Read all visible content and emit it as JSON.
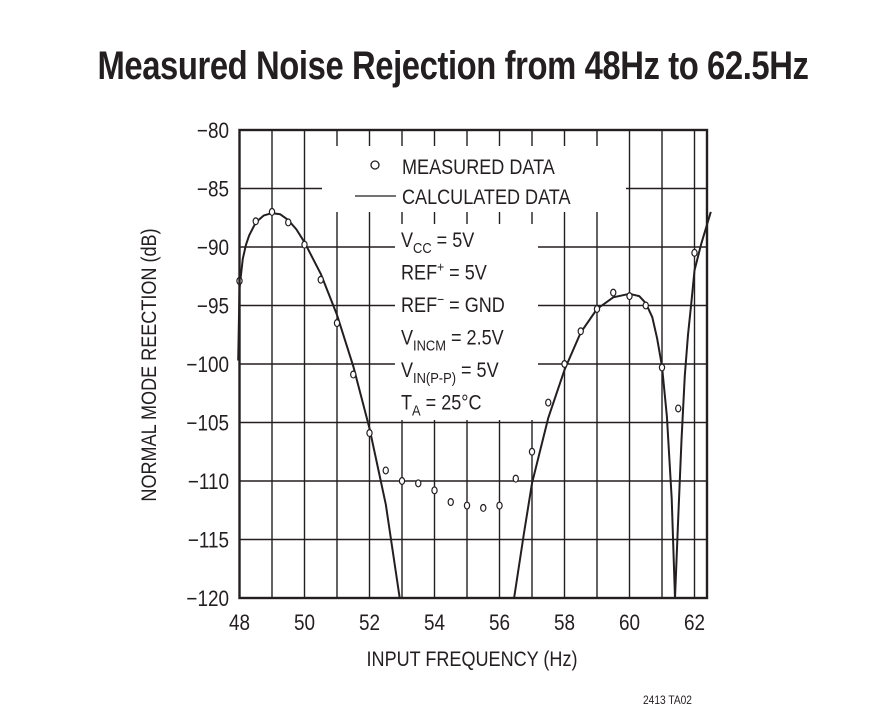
{
  "title": "Measured Noise Rejection from 48Hz to 62.5Hz",
  "footer": "2413 TA02",
  "legend": {
    "measured": "MEASURED DATA",
    "calculated": "CALCULATED DATA"
  },
  "conditions": [
    {
      "main": "V",
      "sub": "CC",
      "sup": "",
      "rest": " = 5V"
    },
    {
      "main": "REF",
      "sub": "",
      "sup": "+",
      "rest": " = 5V"
    },
    {
      "main": "REF",
      "sub": "",
      "sup": "−",
      "rest": " = GND"
    },
    {
      "main": "V",
      "sub": "INCM",
      "sup": "",
      "rest": " = 2.5V"
    },
    {
      "main": "V",
      "sub": "IN(P-P)",
      "sup": "",
      "rest": " = 5V"
    },
    {
      "main": "T",
      "sub": "A",
      "sup": "",
      "rest": " = 25°C"
    }
  ],
  "colors": {
    "ink": "#231f20",
    "background": "#ffffff"
  },
  "chart_data": {
    "type": "line",
    "title": "Measured Noise Rejection from 48Hz to 62.5Hz",
    "xlabel": "INPUT FREQUENCY (Hz)",
    "ylabel": "NORMAL MODE REECTION (dB)",
    "xlim": [
      48,
      62.5
    ],
    "ylim": [
      -120,
      -80
    ],
    "x_ticks": [
      48,
      50,
      52,
      54,
      56,
      58,
      60,
      62
    ],
    "x_tick_labels": [
      "48",
      "50",
      "52",
      "54",
      "56",
      "58",
      "60",
      "62"
    ],
    "x_minor_grid_step": 1,
    "y_ticks": [
      -80,
      -85,
      -90,
      -95,
      -100,
      -105,
      -110,
      -115,
      -120
    ],
    "y_tick_labels": [
      "−80",
      "−85",
      "−90",
      "−95",
      "−100",
      "−105",
      "−110",
      "−115",
      "−120"
    ],
    "grid": true,
    "legend_position": "upper center",
    "series": [
      {
        "name": "MEASURED DATA",
        "style": "markers-open-circle",
        "x": [
          48,
          48.5,
          49,
          49.5,
          50,
          50.5,
          51,
          51.5,
          52,
          52.5,
          53,
          53.5,
          54,
          54.5,
          55,
          55.5,
          56,
          56.5,
          57,
          57.5,
          58,
          58.5,
          59,
          59.5,
          60,
          60.5,
          61,
          61.5,
          62
        ],
        "y": [
          -92.9,
          -87.8,
          -87.0,
          -87.9,
          -89.8,
          -92.8,
          -96.5,
          -100.9,
          -105.9,
          -109.1,
          -110.0,
          -110.2,
          -110.8,
          -111.8,
          -112.1,
          -112.3,
          -112.1,
          -109.8,
          -107.5,
          -103.3,
          -100.0,
          -97.2,
          -95.3,
          -93.9,
          -94.2,
          -95.0,
          -100.3,
          -103.8,
          -90.5
        ]
      },
      {
        "name": "CALCULATED DATA",
        "style": "solid-line",
        "segments": [
          {
            "x": [
              47.96,
              48.0,
              48.1,
              48.2,
              48.3,
              48.5,
              48.75,
              49.0,
              49.25,
              49.5,
              49.75,
              50.0,
              50.5,
              51.0,
              51.5,
              52.0,
              52.5,
              52.93
            ],
            "y": [
              -99.7,
              -93.5,
              -91.0,
              -89.8,
              -89.0,
              -87.9,
              -87.3,
              -87.1,
              -87.2,
              -87.7,
              -88.5,
              -89.6,
              -92.3,
              -95.8,
              -100.2,
              -105.5,
              -112.0,
              -120.0
            ]
          },
          {
            "x": [
              56.45,
              56.75,
              57.0,
              57.5,
              58.0,
              58.5,
              59.0,
              59.5,
              60.0,
              60.3,
              60.5,
              60.7,
              60.85,
              61.0,
              61.15,
              61.3,
              61.4
            ],
            "y": [
              -120.0,
              -114.5,
              -110.2,
              -104.6,
              -100.5,
              -97.3,
              -95.3,
              -94.3,
              -94.0,
              -94.2,
              -94.8,
              -96.0,
              -97.8,
              -100.2,
              -104.5,
              -111.5,
              -120.0
            ]
          },
          {
            "x": [
              61.4,
              61.5,
              61.6,
              61.7,
              61.8,
              61.9,
              62.0,
              62.2,
              62.5
            ],
            "y": [
              -120.0,
              -113.0,
              -106.5,
              -101.0,
              -97.5,
              -94.8,
              -92.0,
              -89.8,
              -87.0
            ]
          }
        ]
      }
    ]
  }
}
